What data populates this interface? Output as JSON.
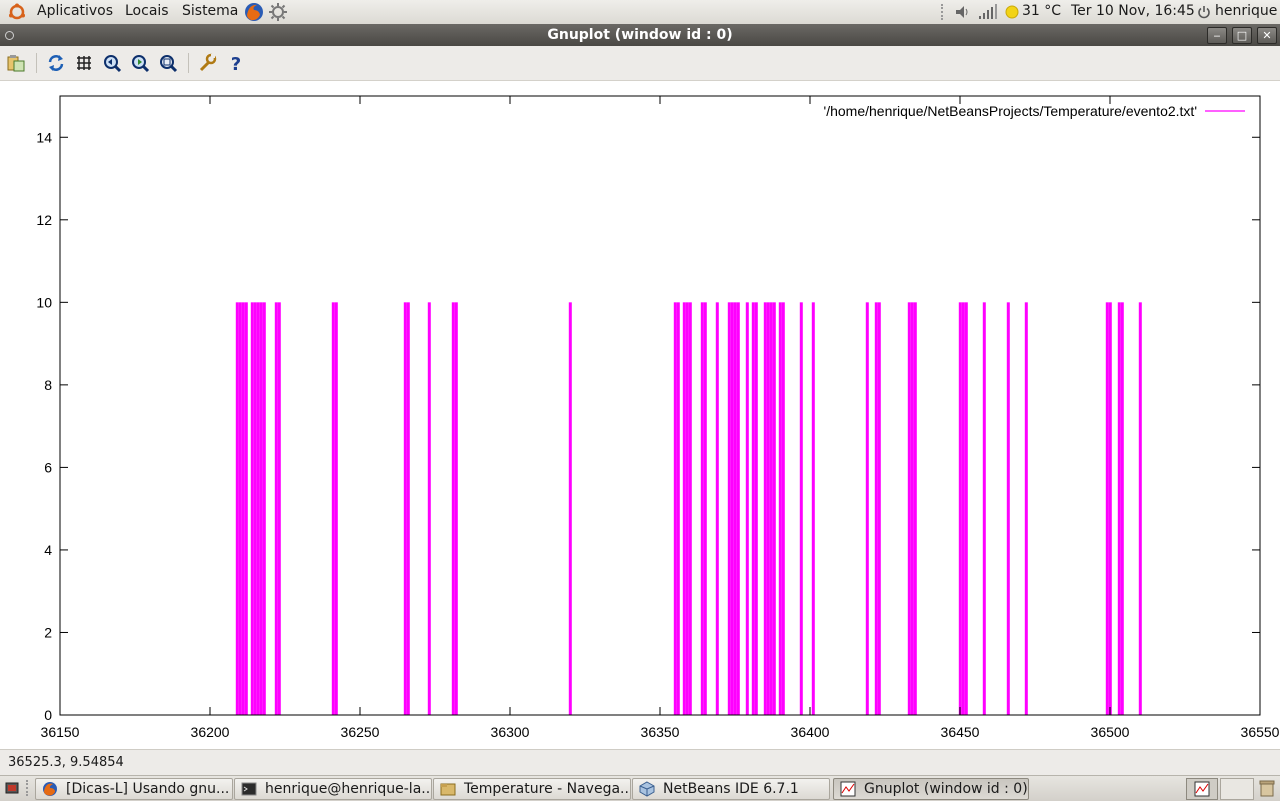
{
  "top_panel": {
    "menus": [
      "Aplicativos",
      "Locais",
      "Sistema"
    ],
    "weather": "31 °C",
    "clock": "Ter 10 Nov, 16:45",
    "user": "henrique"
  },
  "window": {
    "title": "Gnuplot (window id : 0)"
  },
  "toolbar": {
    "icons": [
      "copy-to-clipboard-icon",
      "replot-icon",
      "grid-icon",
      "zoom-previous-icon",
      "zoom-next-icon",
      "autoscale-icon",
      "settings-icon",
      "help-icon"
    ]
  },
  "status": {
    "coords": "36525.3,  9.54854"
  },
  "taskbar": {
    "tasks": [
      {
        "label": "[Dicas-L] Usando gnu...",
        "icon": "firefox-icon"
      },
      {
        "label": "henrique@henrique-la...",
        "icon": "terminal-icon"
      },
      {
        "label": "Temperature - Navega...",
        "icon": "folder-icon"
      },
      {
        "label": "NetBeans IDE 6.7.1",
        "icon": "netbeans-icon"
      },
      {
        "label": "Gnuplot (window id : 0)",
        "icon": "gnuplot-icon"
      }
    ]
  },
  "chart_data": {
    "type": "bar",
    "series": [
      {
        "name": "'/home/henrique/NetBeansProjects/Temperature/evento2.txt'",
        "x": [
          36209,
          36210,
          36211,
          36212,
          36214,
          36215,
          36216,
          36217,
          36218,
          36222,
          36223,
          36241,
          36242,
          36265,
          36266,
          36273,
          36281,
          36282,
          36320,
          36355,
          36356,
          36358,
          36359,
          36360,
          36364,
          36365,
          36369,
          36373,
          36374,
          36375,
          36376,
          36379,
          36381,
          36382,
          36385,
          36386,
          36387,
          36388,
          36390,
          36391,
          36397,
          36401,
          36419,
          36422,
          36423,
          36433,
          36434,
          36435,
          36450,
          36451,
          36452,
          36458,
          36466,
          36472,
          36499,
          36500,
          36503,
          36504,
          36510
        ],
        "y": 10,
        "color": "#ff00ff"
      }
    ],
    "xlim": [
      36150,
      36550
    ],
    "ylim": [
      0,
      15
    ],
    "xticks": [
      36150,
      36200,
      36250,
      36300,
      36350,
      36400,
      36450,
      36500,
      36550
    ],
    "yticks": [
      0,
      2,
      4,
      6,
      8,
      10,
      12,
      14
    ],
    "grid": false,
    "legend": "top-right"
  }
}
